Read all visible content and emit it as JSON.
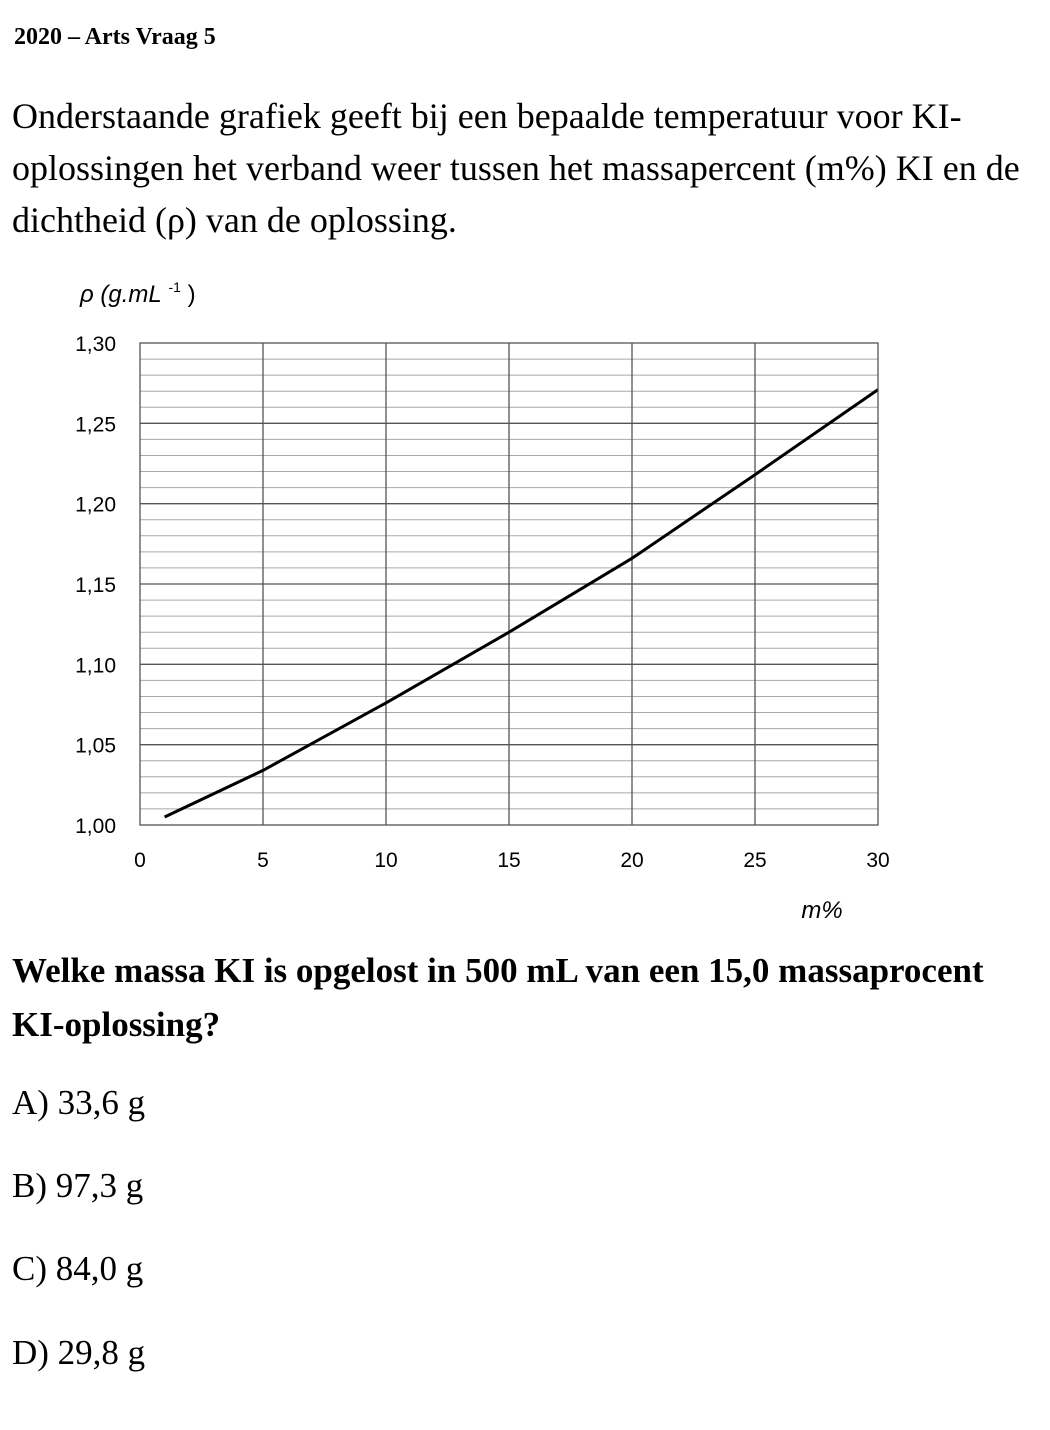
{
  "header": "2020 – Arts Vraag 5",
  "intro": "Onderstaande grafiek geeft bij een bepaalde temperatuur voor KI-oplossingen het verband weer tussen het massapercent (m%) KI en de dichtheid (ρ) van de oplossing.",
  "chart_data": {
    "type": "line",
    "title": "",
    "xlabel": "m%",
    "ylabel": "ρ (g.mL-1)",
    "ylabel_parts": {
      "main": "ρ (g.mL",
      "sup": "-1",
      "end": ")"
    },
    "xlim": [
      0,
      30
    ],
    "ylim": [
      1.0,
      1.3
    ],
    "x_ticks": [
      "0",
      "5",
      "10",
      "15",
      "20",
      "25",
      "30"
    ],
    "y_ticks": [
      "1,00",
      "1,05",
      "1,10",
      "1,15",
      "1,20",
      "1,25",
      "1,30"
    ],
    "grid": true,
    "series": [
      {
        "x": [
          1,
          5,
          10,
          15,
          20,
          25,
          30
        ],
        "y": [
          1.005,
          1.034,
          1.076,
          1.12,
          1.166,
          1.218,
          1.271
        ]
      }
    ]
  },
  "question": "Welke massa KI is opgelost in 500 mL van een 15,0 massaprocent KI-oplossing?",
  "options": [
    "A) 33,6 g",
    "B) 97,3 g",
    "C) 84,0 g",
    "D) 29,8 g"
  ]
}
